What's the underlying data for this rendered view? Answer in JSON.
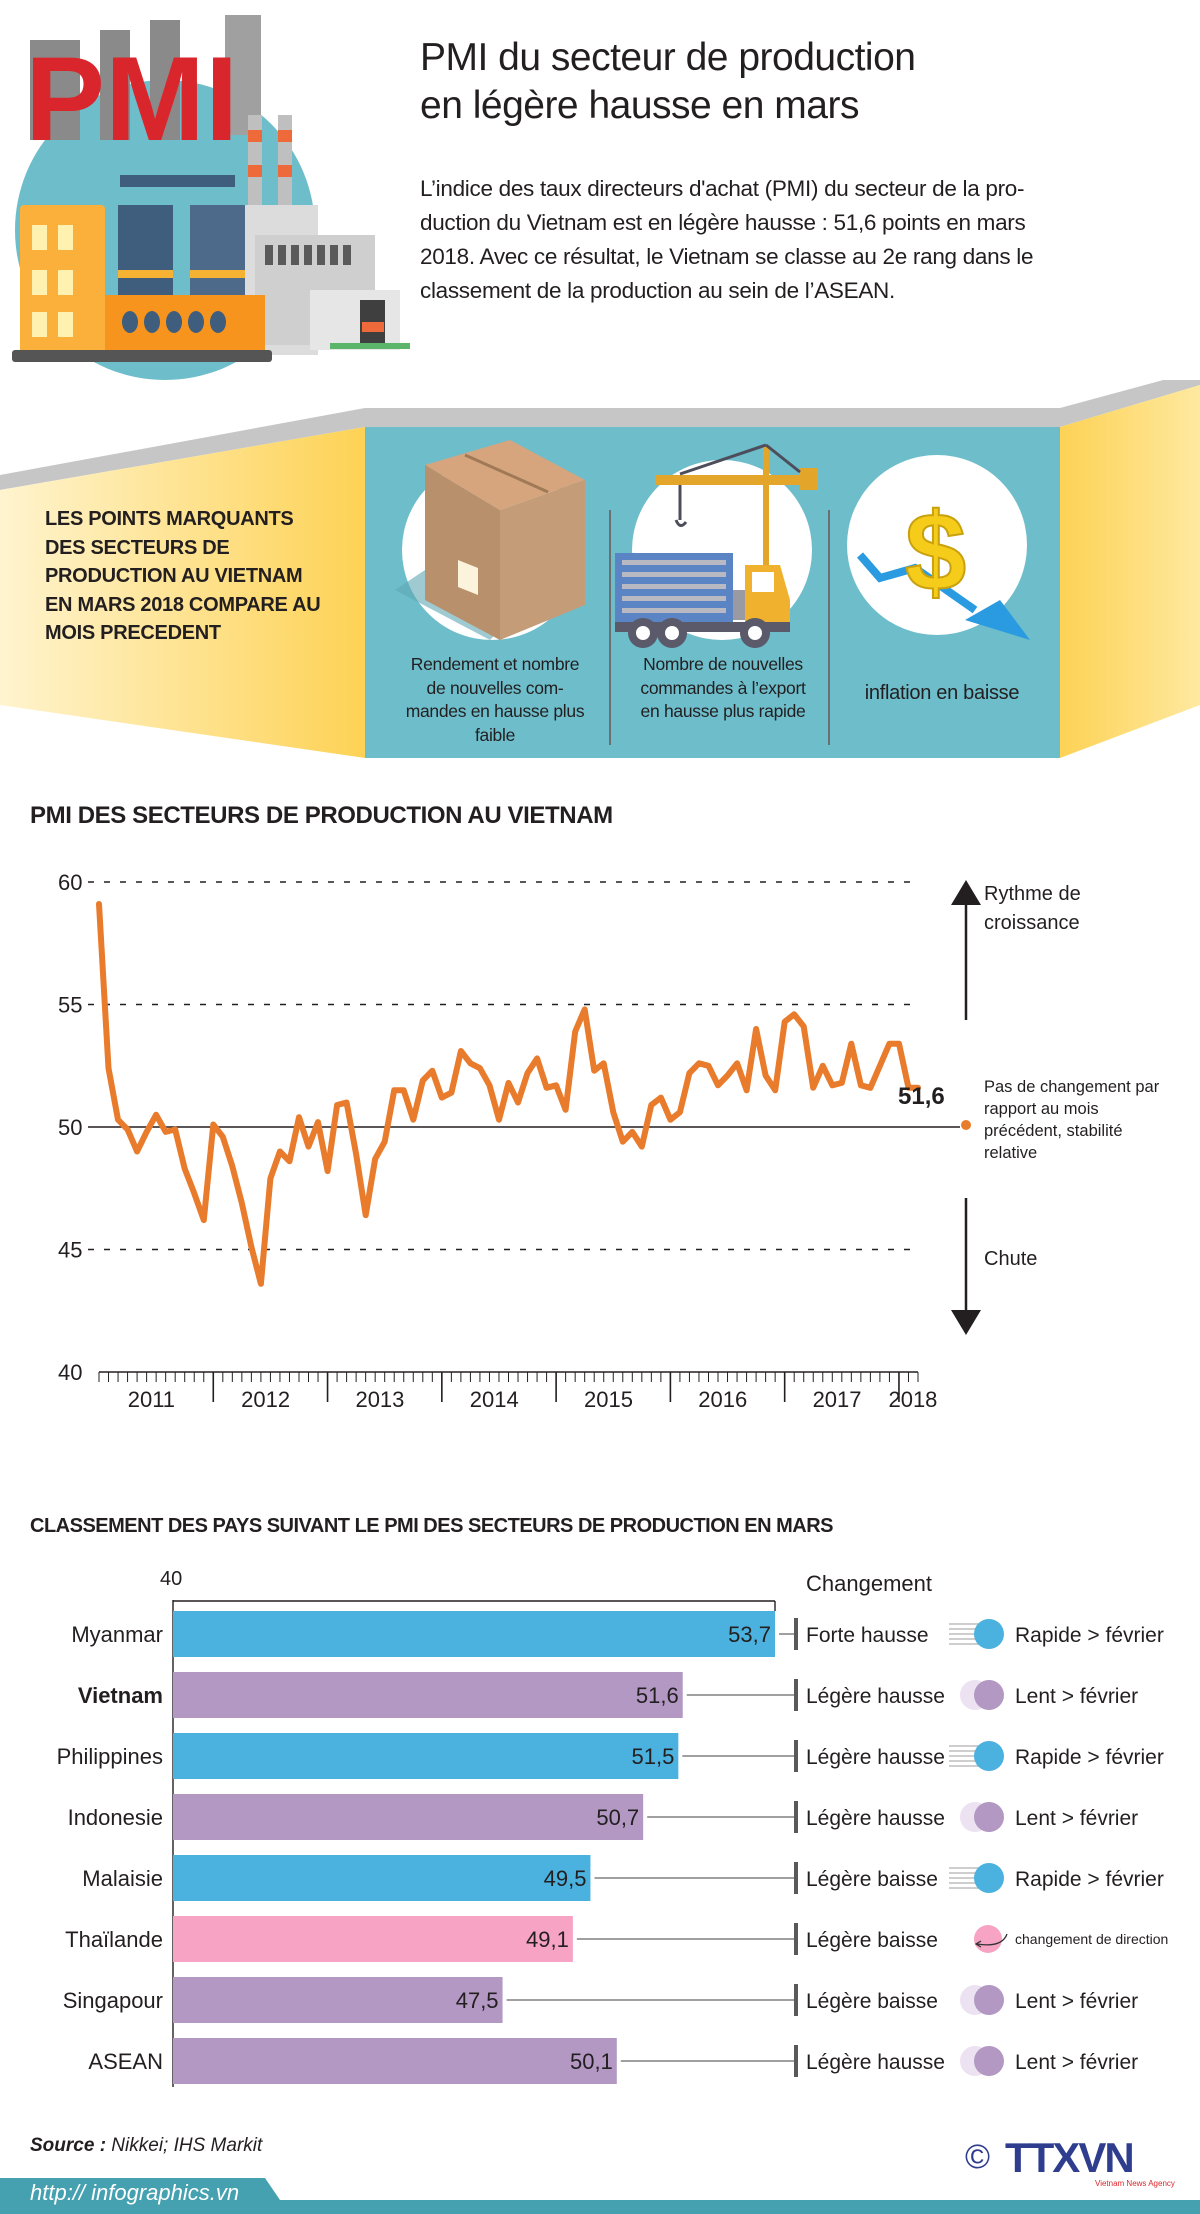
{
  "header": {
    "logo_text": "PMI",
    "title_line1": "PMI du secteur de production",
    "title_line2": "en légère hausse en mars",
    "intro_line1": "L’indice des taux directeurs d'achat (PMI) du secteur de la pro-",
    "intro_line2": "duction du Vietnam est en légère hausse : 51,6 points en mars",
    "intro_line3": "2018. Avec ce résultat, le Vietnam se classe au 2e rang dans le",
    "intro_line4": "classement de la production au sein de l’ASEAN."
  },
  "highlights": {
    "heading_lines": [
      "LES POINTS MARQUANTS",
      "DES SECTEURS DE",
      "PRODUCTION AU VIETNAM",
      "EN MARS 2018 COMPARE AU",
      "MOIS PRECEDENT"
    ],
    "items": [
      {
        "icon": "box-icon",
        "caption_lines": [
          "Rendement et nombre",
          "de nouvelles com-",
          "mandes en hausse plus",
          "faible"
        ]
      },
      {
        "icon": "crane-truck-icon",
        "caption_lines": [
          "Nombre de nouvelles",
          "commandes à l’export",
          "en hausse plus rapide"
        ]
      },
      {
        "icon": "dollar-down-icon",
        "caption_lines": [
          "inflation en baisse"
        ]
      }
    ]
  },
  "colors": {
    "line": "#e87b2c",
    "teal": "#6dbdcb",
    "yellow": "#fdd255",
    "bar_blue": "#4bb1de",
    "bar_purple": "#b298c3",
    "bar_pink": "#f7a3c4",
    "footer_teal": "#45a0b0"
  },
  "chart_data": [
    {
      "type": "line",
      "title": "PMI DES SECTEURS DE PRODUCTION AU VIETNAM",
      "xlabel": "",
      "ylabel": "",
      "ylim": [
        40,
        60
      ],
      "yticks": [
        40,
        45,
        50,
        55,
        60
      ],
      "x_tick_labels": [
        "2011",
        "2012",
        "2013",
        "2014",
        "2015",
        "2016",
        "2017",
        "2018"
      ],
      "x_start": "2011-01",
      "x_end": "2018-03",
      "grid": "dashed at 45, 55, 60; solid reference line at 50",
      "series": [
        {
          "name": "PMI Vietnam",
          "values": [
            59.1,
            52.4,
            50.3,
            49.9,
            49.0,
            49.8,
            50.5,
            49.8,
            49.9,
            48.3,
            47.3,
            46.2,
            50.1,
            49.6,
            48.4,
            46.9,
            45.1,
            43.6,
            47.9,
            49.0,
            48.6,
            50.4,
            49.2,
            50.2,
            48.2,
            50.9,
            51.0,
            48.9,
            46.4,
            48.7,
            49.4,
            51.5,
            51.5,
            50.3,
            51.9,
            52.3,
            51.2,
            51.4,
            53.1,
            52.6,
            52.4,
            51.7,
            50.3,
            51.8,
            51.0,
            52.2,
            52.8,
            51.6,
            51.7,
            50.7,
            53.9,
            54.8,
            52.3,
            52.6,
            50.6,
            49.4,
            49.8,
            49.2,
            50.9,
            51.2,
            50.3,
            50.6,
            52.2,
            52.6,
            52.5,
            51.7,
            52.1,
            52.6,
            51.5,
            54.0,
            52.1,
            51.5,
            54.3,
            54.6,
            54.1,
            51.6,
            52.5,
            51.7,
            51.8,
            53.4,
            51.7,
            51.6,
            52.5,
            53.4,
            53.4,
            51.6,
            51.6
          ]
        }
      ],
      "annotations": {
        "last_value_label": "51,6",
        "up_label": "Rythme de croissance",
        "up_label_lines": [
          "Rythme de",
          "croissance"
        ],
        "mid_label_lines": [
          "Pas de changement par",
          "rapport au mois",
          "précédent, stabilité",
          "relative"
        ],
        "down_label": "Chute"
      }
    },
    {
      "type": "bar",
      "orientation": "horizontal",
      "title": "CLASSEMENT DES PAYS SUIVANT LE PMI DES SECTEURS DE PRODUCTION EN MARS",
      "axis_start_label": "40",
      "xlim": [
        40,
        53.7
      ],
      "change_header": "Changement",
      "categories": [
        "Myanmar",
        "Vietnam",
        "Philippines",
        "Indonesie",
        "Malaisie",
        "Thaïlande",
        "Singapour",
        "ASEAN"
      ],
      "values": [
        53.7,
        51.6,
        51.5,
        50.7,
        49.5,
        49.1,
        47.5,
        50.1
      ],
      "value_labels": [
        "53,7",
        "51,6",
        "51,5",
        "50,7",
        "49,5",
        "49,1",
        "47,5",
        "50,1"
      ],
      "bar_color_group": [
        "rapide",
        "lent",
        "rapide",
        "lent",
        "rapide",
        "direction",
        "lent",
        "lent"
      ],
      "change_labels": [
        "Forte hausse",
        "Légère hausse",
        "Légère hausse",
        "Légère hausse",
        "Légère baisse",
        "Légère baisse",
        "Légère baisse",
        "Légère hausse"
      ],
      "speed_labels": [
        "Rapide > février",
        "Lent > février",
        "Rapide > février",
        "Lent > février",
        "Rapide > février",
        "changement de direction",
        "Lent > février",
        "Lent > février"
      ],
      "highlight_category": "Vietnam"
    }
  ],
  "footer": {
    "source_label": "Source :",
    "source_value": " Nikkei; IHS Markit",
    "url": "http:// infographics.vn",
    "logo_text": "TTXVN",
    "logo_sub": "Vietnam News Agency",
    "copyright": "©"
  }
}
